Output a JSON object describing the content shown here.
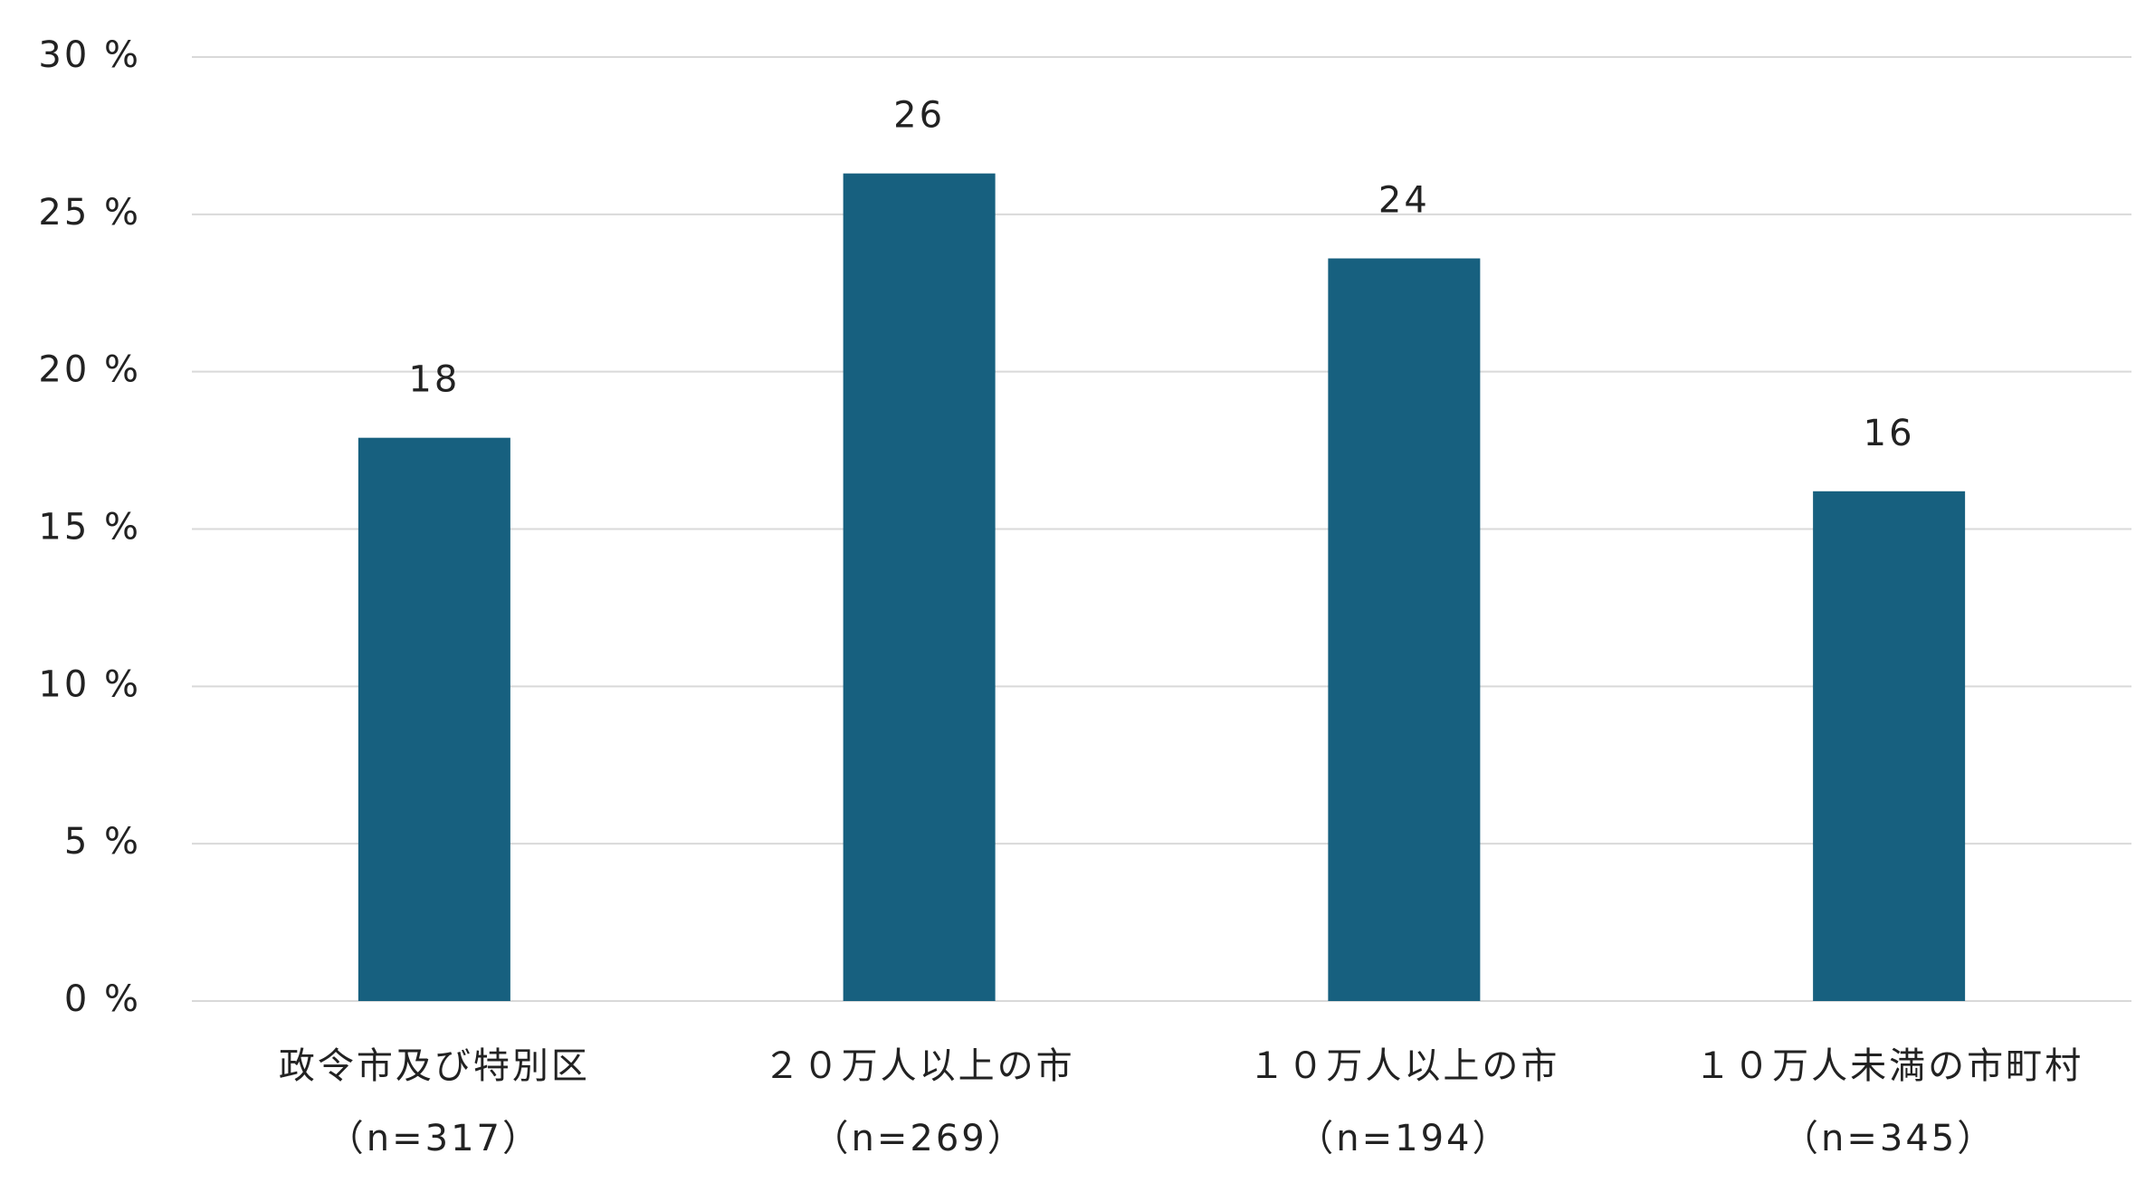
{
  "chart_data": {
    "type": "bar",
    "categories": [
      [
        "政令市及び特別区",
        "（n=317）"
      ],
      [
        "２０万人以上の市",
        "（n=269）"
      ],
      [
        "１０万人以上の市",
        "（n=194）"
      ],
      [
        "１０万人未満の市町村",
        "（n=345）"
      ]
    ],
    "values": [
      17.9,
      26.3,
      23.6,
      16.2
    ],
    "value_labels": [
      "18",
      "26",
      "24",
      "16"
    ],
    "color": "#17607f",
    "ylim": [
      0,
      30
    ],
    "yticks": [
      {
        "value": 0,
        "label": "0 %"
      },
      {
        "value": 5,
        "label": "5 %"
      },
      {
        "value": 10,
        "label": "10 %"
      },
      {
        "value": 15,
        "label": "15 %"
      },
      {
        "value": 20,
        "label": "20 %"
      },
      {
        "value": 25,
        "label": "25 %"
      },
      {
        "value": 30,
        "label": "30 %"
      }
    ],
    "grid": true
  }
}
